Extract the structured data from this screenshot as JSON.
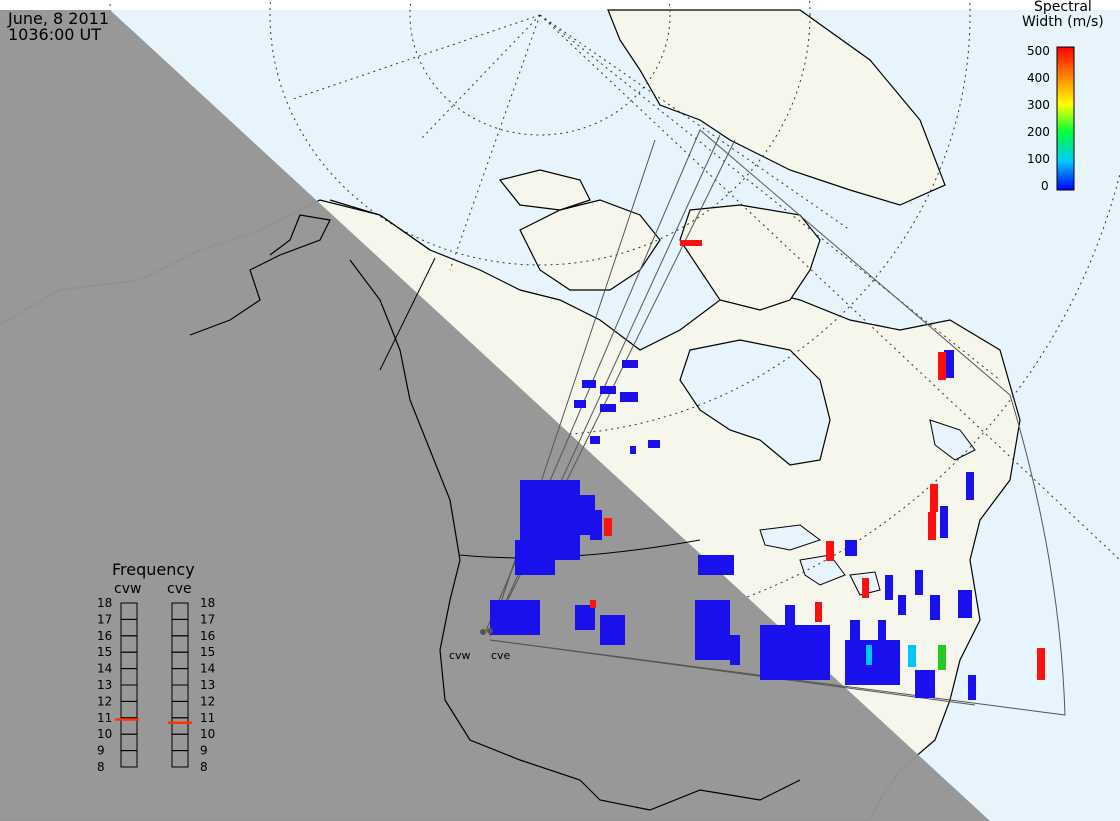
{
  "header": {
    "date": "June, 8 2011",
    "time": "1036:00 UT"
  },
  "colorbar": {
    "title_line1": "Spectral",
    "title_line2": "Width (m/s)",
    "ticks": [
      "500",
      "400",
      "300",
      "200",
      "100",
      "0"
    ]
  },
  "frequency_panel": {
    "title": "Frequency",
    "cvw_label": "cvw",
    "cve_label": "cve",
    "scale": [
      "18",
      "17",
      "16",
      "15",
      "14",
      "13",
      "12",
      "11",
      "10",
      "9",
      "8"
    ],
    "cvw_value_mhz": 10.9,
    "cve_value_mhz": 10.7,
    "indicator_color": "#ff3300"
  },
  "radars": {
    "cvw": "cvw",
    "cve": "cve"
  },
  "colors": {
    "ocean": "#e8f4fc",
    "land": "#f6f6ec",
    "night": "#959595",
    "scatter_low": "#1a10ee",
    "scatter_mid": "#00c8ff",
    "scatter_green": "#22cc22",
    "scatter_high": "#ff1010"
  }
}
